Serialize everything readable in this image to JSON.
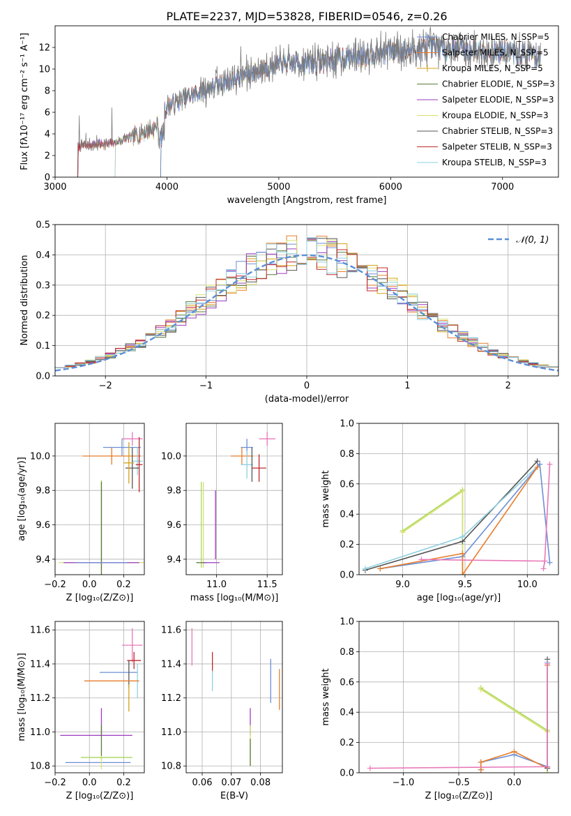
{
  "figure_title": "PLATE=2237, MJD=53828, FIBERID=0546, z=0.26",
  "colors": {
    "Chabrier MILES": "#6b8fd6",
    "Salpeter MILES": "#e87d2a",
    "Kroupa MILES": "#d4a017",
    "Chabrier ELODIE": "#5a7a3a",
    "Salpeter ELODIE": "#9a3bc0",
    "Kroupa ELODIE": "#d8e070",
    "Chabrier STELIB": "#555555",
    "Salpeter STELIB": "#c0282a",
    "Kroupa STELIB": "#8fd0e0",
    "pink": "#e878b8",
    "lime": "#a8d858",
    "normal": "#5b8fd6"
  },
  "chart_data": [
    {
      "id": "spectrum",
      "type": "line",
      "xlabel": "wavelength [Angstrom, rest frame]",
      "ylabel": "Flux [fλ10⁻¹⁷ erg cm⁻² s⁻¹ A⁻¹]",
      "xlim": [
        3000,
        7500
      ],
      "ylim": [
        0,
        14
      ],
      "xticks": [
        3000,
        4000,
        5000,
        6000,
        7000
      ],
      "yticks": [
        0,
        2,
        4,
        6,
        8,
        10,
        12
      ],
      "legend_position": "top-right",
      "legend": [
        "Chabrier MILES, N_SSP=5",
        "Salpeter MILES, N_SSP=5",
        "Kroupa MILES, N_SSP=5",
        "Chabrier ELODIE, N_SSP=3",
        "Salpeter ELODIE, N_SSP=3",
        "Kroupa ELODIE, N_SSP=3",
        "Chabrier STELIB, N_SSP=3",
        "Salpeter STELIB, N_SSP=3",
        "Kroupa STELIB, N_SSP=3"
      ],
      "data_range_x": [
        3200,
        7340
      ],
      "continuum": [
        [
          3200,
          2.9
        ],
        [
          3500,
          3.1
        ],
        [
          3700,
          3.8
        ],
        [
          3900,
          4.6
        ],
        [
          4000,
          6.5
        ],
        [
          4200,
          7.5
        ],
        [
          4500,
          8.7
        ],
        [
          4800,
          9.8
        ],
        [
          5000,
          10.5
        ],
        [
          5300,
          10.6
        ],
        [
          5600,
          11.1
        ],
        [
          6000,
          11.7
        ],
        [
          6500,
          12.0
        ],
        [
          7000,
          11.6
        ],
        [
          7340,
          11.2
        ]
      ],
      "model_starts": [
        3200,
        3520,
        3920
      ]
    },
    {
      "id": "residuals",
      "type": "bar",
      "xlabel": "(data-model)/error",
      "ylabel": "Normed distribution",
      "xlim": [
        -2.5,
        2.5
      ],
      "ylim": [
        0,
        0.5
      ],
      "xticks": [
        -2,
        -1,
        0,
        1,
        2
      ],
      "yticks": [
        0.0,
        0.1,
        0.2,
        0.3,
        0.4,
        0.5
      ],
      "legend_position": "top-right",
      "legend": [
        "𝒩(0, 1)"
      ],
      "bin_width": 0.1
    },
    {
      "id": "age_vs_Z",
      "type": "scatter",
      "xlabel": "Z [log₁₀(Z/Z⊙)]",
      "ylabel": "age  [log₁₀(age/yr)]",
      "xlim": [
        -0.2,
        0.32
      ],
      "ylim": [
        9.31,
        10.19
      ],
      "xticks": [
        -0.2,
        0.0,
        0.2
      ],
      "yticks": [
        9.4,
        9.6,
        9.8,
        10.0
      ],
      "points": [
        {
          "c": "pink",
          "x": 0.25,
          "y": 10.1,
          "xe": 0.06,
          "ye": 0.04
        },
        {
          "c": "Chabrier MILES",
          "x": 0.19,
          "y": 10.05,
          "xe": 0.11,
          "ye": 0.05
        },
        {
          "c": "Salpeter MILES",
          "x": 0.13,
          "y": 10.0,
          "xe": 0.17,
          "ye": 0.05
        },
        {
          "c": "Kroupa STELIB",
          "x": 0.28,
          "y": 9.97,
          "xe": 0.03,
          "ye": 0.08
        },
        {
          "c": "Chabrier STELIB",
          "x": 0.25,
          "y": 9.93,
          "xe": 0.04,
          "ye": 0.12
        },
        {
          "c": "Salpeter STELIB",
          "x": 0.29,
          "y": 9.95,
          "xe": 0.02,
          "ye": 0.16
        },
        {
          "c": "Kroupa MILES",
          "x": 0.23,
          "y": 9.96,
          "xe": 0.03,
          "ye": 0.12
        },
        {
          "c": "lime",
          "x": 0.07,
          "y": 9.6,
          "xe": 0.0,
          "ye": 0.26
        },
        {
          "c": "Chabrier ELODIE",
          "x": 0.07,
          "y": 9.55,
          "xe": 0.0,
          "ye": 0.3
        },
        {
          "c": "Kroupa ELODIE",
          "x": 0.07,
          "y": 9.38,
          "xe": 0.25,
          "ye": 0.0
        },
        {
          "c": "Salpeter ELODIE",
          "x": 0.07,
          "y": 9.38,
          "xe": 0.22,
          "ye": 0.0
        },
        {
          "c": "Chabrier MILES",
          "x": 0.07,
          "y": 9.38,
          "xe": 0.15,
          "ye": 0.0
        }
      ]
    },
    {
      "id": "age_vs_mass",
      "type": "scatter",
      "xlabel": "mass [log₁₀(M/M⊙)]",
      "ylabel": "",
      "xlim": [
        10.7,
        11.65
      ],
      "ylim": [
        9.31,
        10.19
      ],
      "xticks": [
        11.0,
        11.5
      ],
      "yticks": [
        9.4,
        9.6,
        9.8,
        10.0
      ],
      "points": [
        {
          "c": "pink",
          "x": 11.5,
          "y": 10.1,
          "xe": 0.08,
          "ye": 0.04
        },
        {
          "c": "Chabrier MILES",
          "x": 11.3,
          "y": 10.05,
          "xe": 0.06,
          "ye": 0.05
        },
        {
          "c": "Salpeter MILES",
          "x": 11.25,
          "y": 10.0,
          "xe": 0.11,
          "ye": 0.05
        },
        {
          "c": "Kroupa STELIB",
          "x": 11.3,
          "y": 9.95,
          "xe": 0.06,
          "ye": 0.08
        },
        {
          "c": "Chabrier STELIB",
          "x": 11.35,
          "y": 9.95,
          "xe": 0.0,
          "ye": 0.1
        },
        {
          "c": "Salpeter STELIB",
          "x": 11.42,
          "y": 9.93,
          "xe": 0.07,
          "ye": 0.08
        },
        {
          "c": "lime",
          "x": 10.85,
          "y": 9.6,
          "xe": 0.0,
          "ye": 0.25
        },
        {
          "c": "Kroupa ELODIE",
          "x": 10.87,
          "y": 9.6,
          "xe": 0.0,
          "ye": 0.25
        },
        {
          "c": "Salpeter ELODIE",
          "x": 10.99,
          "y": 9.6,
          "xe": 0.0,
          "ye": 0.2
        },
        {
          "c": "Chabrier ELODIE",
          "x": 10.85,
          "y": 9.38,
          "xe": 0.05,
          "ye": 0.0
        },
        {
          "c": "Salpeter ELODIE",
          "x": 10.95,
          "y": 9.38,
          "xe": 0.08,
          "ye": 0.0
        }
      ]
    },
    {
      "id": "mass_weight_vs_age",
      "type": "line",
      "xlabel": "age  [log₁₀(age/yr)]",
      "ylabel": "mass weight",
      "xlim": [
        8.65,
        10.25
      ],
      "ylim": [
        0.0,
        1.0
      ],
      "xticks": [
        9.0,
        9.5,
        10.0
      ],
      "yticks": [
        0.0,
        0.2,
        0.4,
        0.6,
        0.8,
        1.0
      ],
      "series": [
        {
          "c": "lime",
          "x": [
            9.0,
            9.48,
            9.48
          ],
          "y": [
            0.29,
            0.56,
            0.0
          ]
        },
        {
          "c": "Kroupa ELODIE",
          "x": [
            9.0,
            9.48,
            9.48
          ],
          "y": [
            0.28,
            0.55,
            0.0
          ]
        },
        {
          "c": "Chabrier STELIB",
          "x": [
            8.7,
            9.48,
            10.08
          ],
          "y": [
            0.03,
            0.22,
            0.75
          ]
        },
        {
          "c": "Kroupa STELIB",
          "x": [
            8.7,
            9.48,
            10.1
          ],
          "y": [
            0.04,
            0.25,
            0.73
          ]
        },
        {
          "c": "Chabrier MILES",
          "x": [
            8.82,
            9.48,
            10.1,
            10.18
          ],
          "y": [
            0.04,
            0.12,
            0.73,
            0.08
          ]
        },
        {
          "c": "Salpeter MILES",
          "x": [
            8.82,
            9.48,
            9.48,
            10.08
          ],
          "y": [
            0.04,
            0.14,
            0.0,
            0.71
          ]
        },
        {
          "c": "pink",
          "x": [
            9.15,
            10.14,
            10.18
          ],
          "y": [
            0.1,
            0.09,
            0.73
          ]
        },
        {
          "c": "pink",
          "x": [
            10.13,
            10.14
          ],
          "y": [
            0.04,
            0.09
          ]
        }
      ]
    },
    {
      "id": "mass_vs_Z",
      "type": "scatter",
      "xlabel": "Z [log₁₀(Z/Z⊙)]",
      "ylabel": "mass [log₁₀(M/M⊙)]",
      "xlim": [
        -0.2,
        0.32
      ],
      "ylim": [
        10.76,
        11.65
      ],
      "xticks": [
        -0.2,
        0.0,
        0.2
      ],
      "yticks": [
        10.8,
        11.0,
        11.2,
        11.4,
        11.6
      ],
      "points": [
        {
          "c": "pink",
          "x": 0.25,
          "y": 11.51,
          "xe": 0.06,
          "ye": 0.1
        },
        {
          "c": "Salpeter STELIB",
          "x": 0.26,
          "y": 11.42,
          "xe": 0.04,
          "ye": 0.05
        },
        {
          "c": "Chabrier MILES",
          "x": 0.17,
          "y": 11.35,
          "xe": 0.11,
          "ye": 0.0
        },
        {
          "c": "Chabrier STELIB",
          "x": 0.23,
          "y": 11.34,
          "xe": 0.0,
          "ye": 0.08
        },
        {
          "c": "Kroupa STELIB",
          "x": 0.28,
          "y": 11.3,
          "xe": 0.0,
          "ye": 0.1
        },
        {
          "c": "Salpeter MILES",
          "x": 0.13,
          "y": 11.3,
          "xe": 0.16,
          "ye": 0.0
        },
        {
          "c": "Kroupa MILES",
          "x": 0.23,
          "y": 11.2,
          "xe": 0.0,
          "ye": 0.08
        },
        {
          "c": "Salpeter ELODIE",
          "x": 0.07,
          "y": 11.06,
          "xe": 0.0,
          "ye": 0.08
        },
        {
          "c": "Salpeter ELODIE",
          "x": 0.04,
          "y": 10.98,
          "xe": 0.21,
          "ye": 0.0
        },
        {
          "c": "Chabrier ELODIE",
          "x": 0.07,
          "y": 10.94,
          "xe": 0.0,
          "ye": 0.1
        },
        {
          "c": "lime",
          "x": 0.1,
          "y": 10.85,
          "xe": 0.15,
          "ye": 0.0
        },
        {
          "c": "Chabrier MILES",
          "x": 0.05,
          "y": 10.82,
          "xe": 0.19,
          "ye": 0.0
        },
        {
          "c": "Kroupa ELODIE",
          "x": 0.07,
          "y": 10.82,
          "xe": 0.0,
          "ye": 0.04
        }
      ]
    },
    {
      "id": "mass_vs_ebv",
      "type": "scatter",
      "xlabel": "E(B-V)",
      "ylabel": "",
      "xlim": [
        0.0545,
        0.0875
      ],
      "ylim": [
        10.76,
        11.65
      ],
      "xticks": [
        0.06,
        0.07,
        0.08
      ],
      "yticks": [
        10.8,
        11.0,
        11.2,
        11.4,
        11.6
      ],
      "points": [
        {
          "c": "pink",
          "x": 0.0565,
          "y": 11.5,
          "xe": 0.0,
          "ye": 0.11
        },
        {
          "c": "Salpeter STELIB",
          "x": 0.0635,
          "y": 11.41,
          "xe": 0.0,
          "ye": 0.06
        },
        {
          "c": "Kroupa STELIB",
          "x": 0.0635,
          "y": 11.3,
          "xe": 0.0,
          "ye": 0.06
        },
        {
          "c": "Chabrier MILES",
          "x": 0.0835,
          "y": 11.3,
          "xe": 0.0,
          "ye": 0.13
        },
        {
          "c": "Salpeter MILES",
          "x": 0.0865,
          "y": 11.25,
          "xe": 0.0,
          "ye": 0.12
        },
        {
          "c": "Salpeter ELODIE",
          "x": 0.0765,
          "y": 11.06,
          "xe": 0.0,
          "ye": 0.08
        },
        {
          "c": "Kroupa ELODIE",
          "x": 0.0765,
          "y": 10.92,
          "xe": 0.0,
          "ye": 0.12
        },
        {
          "c": "Chabrier ELODIE",
          "x": 0.0765,
          "y": 10.88,
          "xe": 0.0,
          "ye": 0.08
        }
      ]
    },
    {
      "id": "mass_weight_vs_Z",
      "type": "line",
      "xlabel": "Z [log₁₀(Z/Z⊙)]",
      "ylabel": "mass weight",
      "xlim": [
        -1.4,
        0.4
      ],
      "ylim": [
        0.0,
        1.0
      ],
      "xticks": [
        -1.0,
        -0.5,
        0.0
      ],
      "yticks": [
        0.0,
        0.2,
        0.4,
        0.6,
        0.8,
        1.0
      ],
      "series": [
        {
          "c": "lime",
          "x": [
            -0.3,
            0.3,
            0.3
          ],
          "y": [
            0.56,
            0.28,
            0.0
          ]
        },
        {
          "c": "Kroupa ELODIE",
          "x": [
            -0.3,
            0.3,
            0.3
          ],
          "y": [
            0.55,
            0.27,
            0.0
          ]
        },
        {
          "c": "Chabrier MILES",
          "x": [
            -0.3,
            -0.3,
            0.0,
            0.3,
            0.3
          ],
          "y": [
            0.02,
            0.07,
            0.12,
            0.04,
            0.73
          ]
        },
        {
          "c": "Salpeter MILES",
          "x": [
            -0.3,
            -0.3,
            0.0,
            0.3,
            0.3
          ],
          "y": [
            0.02,
            0.07,
            0.14,
            0.03,
            0.71
          ]
        },
        {
          "c": "Chabrier STELIB",
          "x": [
            0.3,
            0.3
          ],
          "y": [
            0.03,
            0.75
          ]
        },
        {
          "c": "Kroupa STELIB",
          "x": [
            0.3,
            0.3
          ],
          "y": [
            0.04,
            0.73
          ]
        },
        {
          "c": "pink",
          "x": [
            -1.3,
            0.3,
            0.3
          ],
          "y": [
            0.03,
            0.04,
            0.72
          ]
        }
      ]
    }
  ]
}
